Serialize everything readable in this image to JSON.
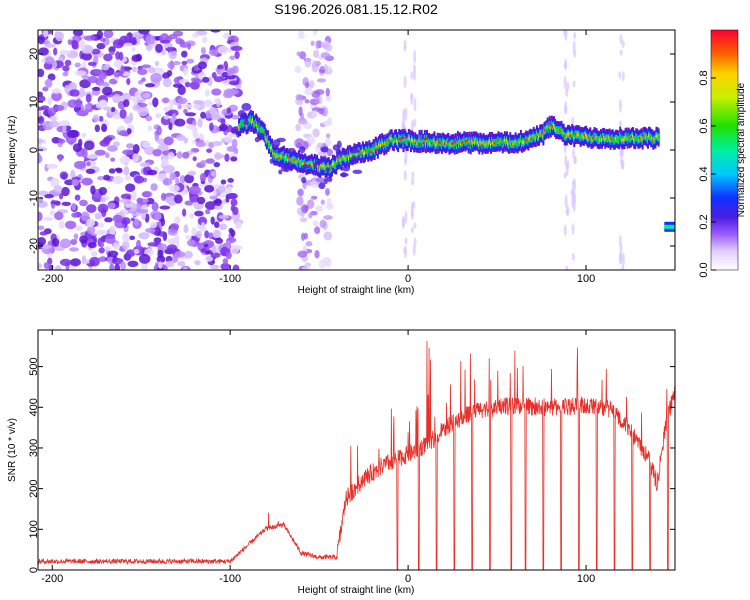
{
  "title": "S196.2026.081.15.12.R02",
  "chart_data": [
    {
      "type": "heatmap",
      "xlabel": "Height of straight line (km)",
      "ylabel": "Frequency (Hz)",
      "xlim": [
        -208,
        150
      ],
      "ylim": [
        -25,
        25
      ],
      "xticks": [
        -200,
        -100,
        0,
        100
      ],
      "yticks": [
        -20,
        -10,
        0,
        10,
        20
      ],
      "colorbar": {
        "label": "Normalized spectral amplitude",
        "range": [
          0,
          1
        ],
        "ticks": [
          0.0,
          0.2,
          0.4,
          0.6,
          0.8
        ]
      },
      "ridge": [
        {
          "x": -95,
          "f": 5
        },
        {
          "x": -88,
          "f": 6
        },
        {
          "x": -82,
          "f": 4
        },
        {
          "x": -75,
          "f": -1
        },
        {
          "x": -65,
          "f": -2
        },
        {
          "x": -55,
          "f": -3
        },
        {
          "x": -45,
          "f": -4
        },
        {
          "x": -38,
          "f": -2
        },
        {
          "x": -30,
          "f": -1
        },
        {
          "x": -20,
          "f": 0
        },
        {
          "x": -10,
          "f": 2
        },
        {
          "x": 0,
          "f": 2
        },
        {
          "x": 20,
          "f": 1.5
        },
        {
          "x": 40,
          "f": 1.5
        },
        {
          "x": 60,
          "f": 1.5
        },
        {
          "x": 75,
          "f": 3
        },
        {
          "x": 80,
          "f": 5
        },
        {
          "x": 90,
          "f": 3
        },
        {
          "x": 110,
          "f": 2.5
        },
        {
          "x": 130,
          "f": 2.5
        },
        {
          "x": 141,
          "f": 2.5
        }
      ],
      "tail_segment": {
        "x": [
          144,
          150
        ],
        "f": -16
      }
    },
    {
      "type": "line",
      "xlabel": "Height of straight line (km)",
      "ylabel": "SNR (10 * v/v)",
      "xlim": [
        -208,
        150
      ],
      "ylim": [
        0,
        590
      ],
      "xticks": [
        -200,
        -100,
        0,
        100
      ],
      "yticks": [
        0,
        100,
        200,
        300,
        400,
        500
      ],
      "series": [
        {
          "name": "SNR",
          "color": "#e8302a",
          "envelope": [
            {
              "x": -208,
              "y": 20
            },
            {
              "x": -150,
              "y": 20
            },
            {
              "x": -100,
              "y": 20
            },
            {
              "x": -90,
              "y": 60
            },
            {
              "x": -80,
              "y": 100
            },
            {
              "x": -70,
              "y": 110
            },
            {
              "x": -60,
              "y": 40
            },
            {
              "x": -50,
              "y": 30
            },
            {
              "x": -40,
              "y": 30
            },
            {
              "x": -35,
              "y": 170
            },
            {
              "x": -25,
              "y": 220
            },
            {
              "x": -15,
              "y": 250
            },
            {
              "x": -5,
              "y": 270
            },
            {
              "x": 5,
              "y": 290
            },
            {
              "x": 15,
              "y": 320
            },
            {
              "x": 25,
              "y": 360
            },
            {
              "x": 40,
              "y": 390
            },
            {
              "x": 60,
              "y": 400
            },
            {
              "x": 80,
              "y": 395
            },
            {
              "x": 100,
              "y": 400
            },
            {
              "x": 115,
              "y": 390
            },
            {
              "x": 125,
              "y": 340
            },
            {
              "x": 135,
              "y": 270
            },
            {
              "x": 140,
              "y": 210
            },
            {
              "x": 145,
              "y": 360
            },
            {
              "x": 150,
              "y": 430
            }
          ],
          "spike_height_range": [
            450,
            590
          ],
          "dropout_value": 0
        }
      ]
    }
  ]
}
